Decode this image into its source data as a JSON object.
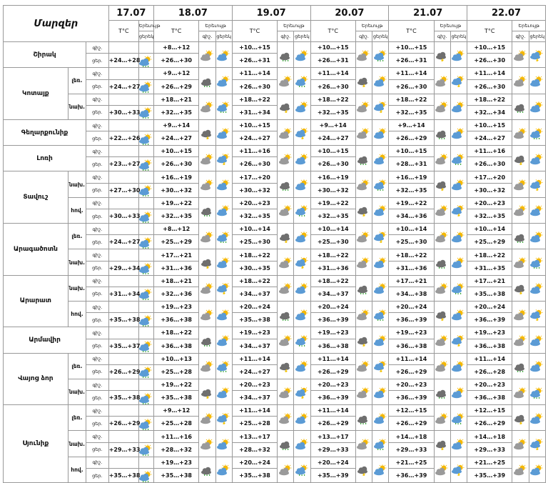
{
  "header": {
    "regions_title": "Մարզեր",
    "temp_label": "T°C",
    "weather_label": "Երեւույթ",
    "day_label": "ցերեկ",
    "night_label": "գիշ.",
    "dates": [
      "17.07",
      "18.07",
      "19.07",
      "20.07",
      "21.07",
      "22.07"
    ]
  },
  "icon_legend": {
    "sun": "sun-icon",
    "cloud": "cloud-icon",
    "rain": "rain-drops-icon",
    "storm": "thunderstorm-icon",
    "colors": {
      "sun": "#f5b800",
      "cloud_blue": "#5b9bd5",
      "cloud_gray": "#9a9a9a",
      "rain": "#2aa02a"
    }
  },
  "regions": [
    {
      "name": "Շիրակ",
      "subs": [
        {
          "label": "",
          "rows": [
            {
              "dn": "գիշ.",
              "t0": "",
              "t": [
                "+8…+12",
                "+10…+15",
                "+10…+15",
                "+10…+15",
                "+10…+15"
              ]
            },
            {
              "dn": "ցեր.",
              "t0": "+24…+28",
              "t": [
                "+26…+30",
                "+26…+31",
                "+26…+31",
                "+26…+31",
                "+26…+30"
              ]
            }
          ]
        }
      ]
    },
    {
      "name": "Կոտայք",
      "subs": [
        {
          "label": "լեռ.",
          "rows": [
            {
              "dn": "գիշ.",
              "t0": "",
              "t": [
                "+9…+12",
                "+11…+14",
                "+11…+14",
                "+11…+14",
                "+11…+14"
              ]
            },
            {
              "dn": "ցեր.",
              "t0": "+24…+27",
              "t": [
                "+26…+29",
                "+26…+30",
                "+26…+30",
                "+26…+30",
                "+26…+30"
              ]
            }
          ]
        },
        {
          "label": "նախ.",
          "rows": [
            {
              "dn": "գիշ.",
              "t0": "",
              "t": [
                "+18…+21",
                "+18…+22",
                "+18…+22",
                "+18…+22",
                "+18…+22"
              ]
            },
            {
              "dn": "ցեր.",
              "t0": "+30…+33",
              "t": [
                "+32…+35",
                "+31…+34",
                "+32…+35",
                "+32…+35",
                "+32…+34"
              ]
            }
          ]
        }
      ]
    },
    {
      "name": "Գեղարքունիք",
      "subs": [
        {
          "label": "",
          "rows": [
            {
              "dn": "գիշ.",
              "t0": "",
              "t": [
                "+9…+14",
                "+10…+15",
                "+9…+14",
                "+9…+14",
                "+10…+15"
              ]
            },
            {
              "dn": "ցեր.",
              "t0": "+22…+26",
              "t": [
                "+24…+27",
                "+24…+27",
                "+24…+27",
                "+26…+29",
                "+24…+27"
              ]
            }
          ]
        }
      ]
    },
    {
      "name": "Լոռի",
      "subs": [
        {
          "label": "",
          "rows": [
            {
              "dn": "գիշ.",
              "t0": "",
              "t": [
                "+10…+15",
                "+11…+16",
                "+10…+15",
                "+10…+15",
                "+11…+16"
              ]
            },
            {
              "dn": "ցեր.",
              "t0": "+23…+27",
              "t": [
                "+26…+30",
                "+26…+30",
                "+26…+30",
                "+28…+31",
                "+26…+30"
              ]
            }
          ]
        }
      ]
    },
    {
      "name": "Տավուշ",
      "subs": [
        {
          "label": "նախ.",
          "rows": [
            {
              "dn": "գիշ.",
              "t0": "",
              "t": [
                "+16…+19",
                "+17…+20",
                "+16…+19",
                "+16…+19",
                "+17…+20"
              ]
            },
            {
              "dn": "ցեր.",
              "t0": "+27…+30",
              "t": [
                "+30…+32",
                "+30…+32",
                "+30…+32",
                "+32…+35",
                "+30…+32"
              ]
            }
          ]
        },
        {
          "label": "հով.",
          "rows": [
            {
              "dn": "գիշ.",
              "t0": "",
              "t": [
                "+19…+22",
                "+20…+23",
                "+19…+22",
                "+19…+22",
                "+20…+23"
              ]
            },
            {
              "dn": "ցեր.",
              "t0": "+30…+33",
              "t": [
                "+32…+35",
                "+32…+35",
                "+32…+35",
                "+34…+36",
                "+32…+35"
              ]
            }
          ]
        }
      ]
    },
    {
      "name": "Արագածոտն",
      "subs": [
        {
          "label": "լեռ.",
          "rows": [
            {
              "dn": "գիշ.",
              "t0": "",
              "t": [
                "+8…+12",
                "+10…+14",
                "+10…+14",
                "+10…+14",
                "+10…+14"
              ]
            },
            {
              "dn": "ցեր.",
              "t0": "+24…+27",
              "t": [
                "+25…+29",
                "+25…+30",
                "+25…+30",
                "+25…+30",
                "+25…+29"
              ]
            }
          ]
        },
        {
          "label": "նախ.",
          "rows": [
            {
              "dn": "գիշ.",
              "t0": "",
              "t": [
                "+17…+21",
                "+18…+22",
                "+18…+22",
                "+18…+22",
                "+18…+22"
              ]
            },
            {
              "dn": "ցեր.",
              "t0": "+29…+34",
              "t": [
                "+31…+36",
                "+30…+35",
                "+31…+36",
                "+31…+36",
                "+31…+35"
              ]
            }
          ]
        }
      ]
    },
    {
      "name": "Արարատ",
      "subs": [
        {
          "label": "նախ.",
          "rows": [
            {
              "dn": "գիշ.",
              "t0": "",
              "t": [
                "+18…+21",
                "+18…+22",
                "+18…+22",
                "+17…+21",
                "+17…+21"
              ]
            },
            {
              "dn": "ցեր.",
              "t0": "+31…+34",
              "t": [
                "+32…+36",
                "+34…+37",
                "+34…+37",
                "+34…+38",
                "+35…+38"
              ]
            }
          ]
        },
        {
          "label": "հով.",
          "rows": [
            {
              "dn": "գիշ.",
              "t0": "",
              "t": [
                "+19…+23",
                "+20…+24",
                "+20…+24",
                "+20…+24",
                "+20…+24"
              ]
            },
            {
              "dn": "ցեր.",
              "t0": "+35…+38",
              "t": [
                "+36…+38",
                "+35…+38",
                "+36…+39",
                "+36…+39",
                "+36…+39"
              ]
            }
          ]
        }
      ]
    },
    {
      "name": "Արմավիր",
      "subs": [
        {
          "label": "",
          "rows": [
            {
              "dn": "գիշ.",
              "t0": "",
              "t": [
                "+18…+22",
                "+19…+23",
                "+19…+23",
                "+19…+23",
                "+19…+23"
              ]
            },
            {
              "dn": "ցեր.",
              "t0": "+35…+37",
              "t": [
                "+36…+38",
                "+34…+37",
                "+36…+38",
                "+36…+38",
                "+36…+38"
              ]
            }
          ]
        }
      ]
    },
    {
      "name": "Վայոց ձոր",
      "subs": [
        {
          "label": "լեռ.",
          "rows": [
            {
              "dn": "գիշ.",
              "t0": "",
              "t": [
                "+10…+13",
                "+11…+14",
                "+11…+14",
                "+11…+14",
                "+11…+14"
              ]
            },
            {
              "dn": "ցեր.",
              "t0": "+26…+29",
              "t": [
                "+25…+28",
                "+24…+27",
                "+26…+29",
                "+26…+29",
                "+26…+28"
              ]
            }
          ]
        },
        {
          "label": "նախ.",
          "rows": [
            {
              "dn": "գիշ.",
              "t0": "",
              "t": [
                "+19…+22",
                "+20…+23",
                "+20…+23",
                "+20…+23",
                "+20…+23"
              ]
            },
            {
              "dn": "ցեր.",
              "t0": "+35…+38",
              "t": [
                "+35…+38",
                "+34…+37",
                "+36…+39",
                "+36…+39",
                "+36…+38"
              ]
            }
          ]
        }
      ]
    },
    {
      "name": "Սյունիք",
      "subs": [
        {
          "label": "լեռ.",
          "rows": [
            {
              "dn": "գիշ.",
              "t0": "",
              "t": [
                "+9…+12",
                "+11…+14",
                "+11…+14",
                "+12…+15",
                "+12…+15"
              ]
            },
            {
              "dn": "ցեր.",
              "t0": "+26…+29",
              "t": [
                "+25…+28",
                "+25…+28",
                "+26…+29",
                "+26…+29",
                "+26…+29"
              ]
            }
          ]
        },
        {
          "label": "նախ.",
          "rows": [
            {
              "dn": "գիշ.",
              "t0": "",
              "t": [
                "+11…+16",
                "+13…+17",
                "+13…+17",
                "+14…+18",
                "+14…+18"
              ]
            },
            {
              "dn": "ցեր.",
              "t0": "+29…+33",
              "t": [
                "+28…+32",
                "+28…+32",
                "+29…+33",
                "+29…+33",
                "+29…+33"
              ]
            }
          ]
        },
        {
          "label": "հով.",
          "rows": [
            {
              "dn": "գիշ.",
              "t0": "",
              "t": [
                "+19…+23",
                "+20…+24",
                "+20…+24",
                "+21…+25",
                "+21…+25"
              ]
            },
            {
              "dn": "ցեր.",
              "t0": "+35…+38",
              "t": [
                "+35…+38",
                "+35…+38",
                "+35…+39",
                "+36…+39",
                "+35…+39"
              ]
            }
          ]
        }
      ]
    }
  ]
}
